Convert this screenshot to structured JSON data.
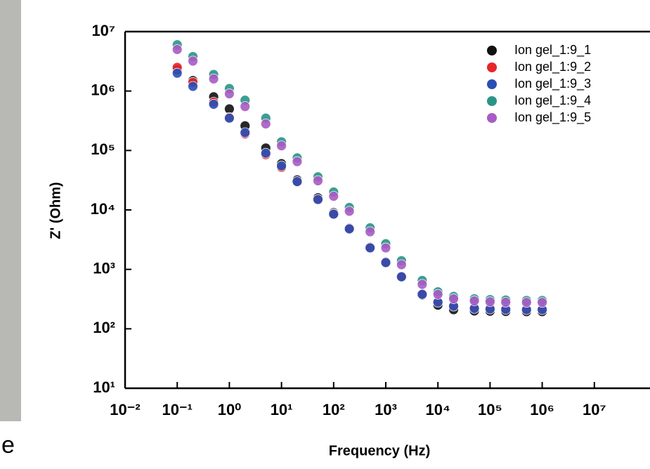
{
  "left_panel": {
    "text": "e"
  },
  "chart_data": {
    "type": "scatter",
    "x_label": "Frequency (Hz)",
    "y_label": "Z' (Ohm)",
    "log_x": true,
    "log_y": true,
    "legend": "upper right",
    "x": [
      0.1,
      0.2,
      0.5,
      1,
      2,
      5,
      10,
      20,
      50,
      100,
      200,
      500,
      1000,
      2000,
      5000,
      10000,
      20000,
      50000,
      100000,
      200000,
      500000,
      1000000
    ],
    "series": [
      {
        "name": "Ion gel_1:9_1",
        "color": "#111111",
        "values": [
          2300000,
          1500000,
          800000,
          500000,
          260000,
          110000,
          60000,
          32000,
          16000,
          9000,
          5000,
          2400,
          1350,
          760,
          370,
          250,
          210,
          200,
          198,
          196,
          195,
          195
        ]
      },
      {
        "name": "Ion gel_1:9_2",
        "color": "#e8252b",
        "values": [
          2500000,
          1400000,
          650000,
          360000,
          190000,
          85000,
          52000,
          30000,
          15000,
          8600,
          4900,
          2350,
          1320,
          760,
          385,
          285,
          245,
          225,
          218,
          215,
          213,
          212
        ]
      },
      {
        "name": "Ion gel_1:9_3",
        "color": "#2a4fb5",
        "values": [
          2000000,
          1200000,
          600000,
          350000,
          200000,
          90000,
          55000,
          30000,
          15000,
          8500,
          4800,
          2300,
          1300,
          750,
          380,
          280,
          240,
          220,
          215,
          212,
          210,
          210
        ]
      },
      {
        "name": "Ion gel_1:9_4",
        "color": "#2a9487",
        "values": [
          6000000,
          3800000,
          1900000,
          1100000,
          700000,
          350000,
          140000,
          75000,
          36000,
          20000,
          11000,
          5000,
          2700,
          1400,
          650,
          420,
          350,
          320,
          310,
          305,
          300,
          300
        ]
      },
      {
        "name": "Ion gel_1:9_5",
        "color": "#a95bc4",
        "values": [
          5000000,
          3200000,
          1600000,
          900000,
          550000,
          280000,
          120000,
          65000,
          31000,
          17000,
          9500,
          4300,
          2300,
          1200,
          560,
          380,
          320,
          295,
          285,
          280,
          278,
          278
        ]
      }
    ],
    "xlim": [
      0.01,
      100000000
    ],
    "ylim": [
      10,
      10000000
    ],
    "xticks": [
      {
        "value": 0.01,
        "label": "10⁻²"
      },
      {
        "value": 0.1,
        "label": "10⁻¹"
      },
      {
        "value": 1,
        "label": "10⁰"
      },
      {
        "value": 10,
        "label": "10¹"
      },
      {
        "value": 100,
        "label": "10²"
      },
      {
        "value": 1000,
        "label": "10³"
      },
      {
        "value": 10000,
        "label": "10⁴"
      },
      {
        "value": 100000,
        "label": "10⁵"
      },
      {
        "value": 1000000,
        "label": "10⁶"
      },
      {
        "value": 10000000,
        "label": "10⁷"
      }
    ],
    "yticks": [
      {
        "value": 10,
        "label": "10¹"
      },
      {
        "value": 100,
        "label": "10²"
      },
      {
        "value": 1000,
        "label": "10³"
      },
      {
        "value": 10000,
        "label": "10⁴"
      },
      {
        "value": 100000,
        "label": "10⁵"
      },
      {
        "value": 1000000,
        "label": "10⁶"
      },
      {
        "value": 10000000,
        "label": "10⁷"
      }
    ]
  }
}
